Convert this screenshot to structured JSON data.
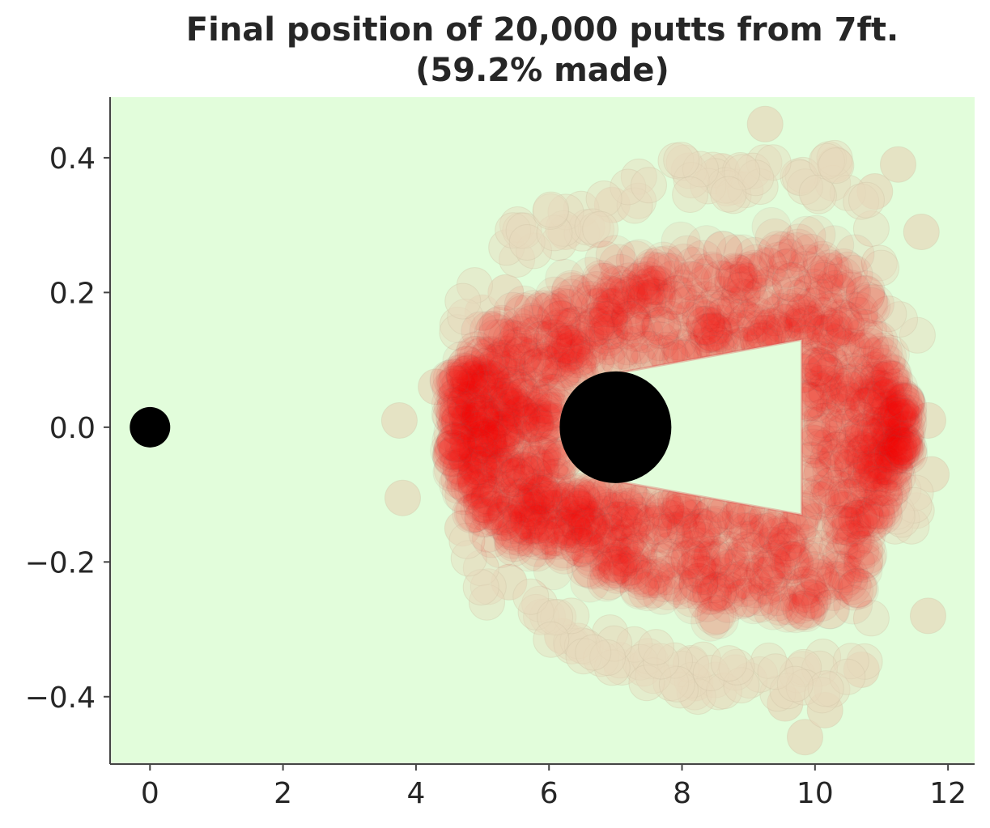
{
  "chart_data": {
    "type": "scatter",
    "title": "Final position of 20,000 putts from 7ft.",
    "subtitle": "(59.2% made)",
    "xlabel": "",
    "ylabel": "",
    "xlim": [
      -0.6,
      12.4
    ],
    "ylim": [
      -0.5,
      0.49
    ],
    "xticks": [
      0,
      2,
      4,
      6,
      8,
      10,
      12
    ],
    "yticks": [
      -0.4,
      -0.2,
      0.0,
      0.2,
      0.4
    ],
    "xtick_labels": [
      "0",
      "2",
      "4",
      "6",
      "8",
      "10",
      "12"
    ],
    "ytick_labels": [
      "−0.4",
      "−0.2",
      "0.0",
      "0.2",
      "0.4"
    ],
    "grid": false,
    "background_color": "#e2fddb",
    "ball": {
      "x": 0,
      "y": 0,
      "color": "#000000"
    },
    "hole": {
      "x": 7,
      "y": 0,
      "color": "#000000"
    },
    "putt_color": "#ff0000",
    "putt_outlier_color": "#e6d9bc",
    "putt_edge_color": "#777777",
    "putt_region": {
      "x_min": 4.3,
      "x_max": 11.7,
      "y_min": -0.38,
      "y_max": 0.38,
      "center_x": 8.2,
      "center_y": 0.0,
      "inner_wedge": [
        [
          7.0,
          0.08
        ],
        [
          9.8,
          0.13
        ],
        [
          9.8,
          -0.13
        ],
        [
          7.0,
          -0.08
        ]
      ]
    },
    "sample_points": [
      [
        3.75,
        0.01
      ],
      [
        3.8,
        -0.105
      ],
      [
        4.3,
        0.06
      ],
      [
        4.55,
        -0.03
      ],
      [
        4.7,
        -0.15
      ],
      [
        5.0,
        0.17
      ],
      [
        5.35,
        0.2
      ],
      [
        5.4,
        -0.23
      ],
      [
        6.2,
        -0.31
      ],
      [
        6.25,
        0.29
      ],
      [
        6.95,
        0.33
      ],
      [
        8.2,
        -0.38
      ],
      [
        8.6,
        0.38
      ],
      [
        9.25,
        0.45
      ],
      [
        9.55,
        -0.41
      ],
      [
        9.85,
        -0.46
      ],
      [
        10.15,
        -0.42
      ],
      [
        10.3,
        0.39
      ],
      [
        10.9,
        0.35
      ],
      [
        11.25,
        0.39
      ],
      [
        11.6,
        0.29
      ],
      [
        11.7,
        -0.28
      ],
      [
        11.75,
        -0.07
      ],
      [
        11.7,
        0.01
      ],
      [
        10.7,
        -0.36
      ]
    ]
  }
}
